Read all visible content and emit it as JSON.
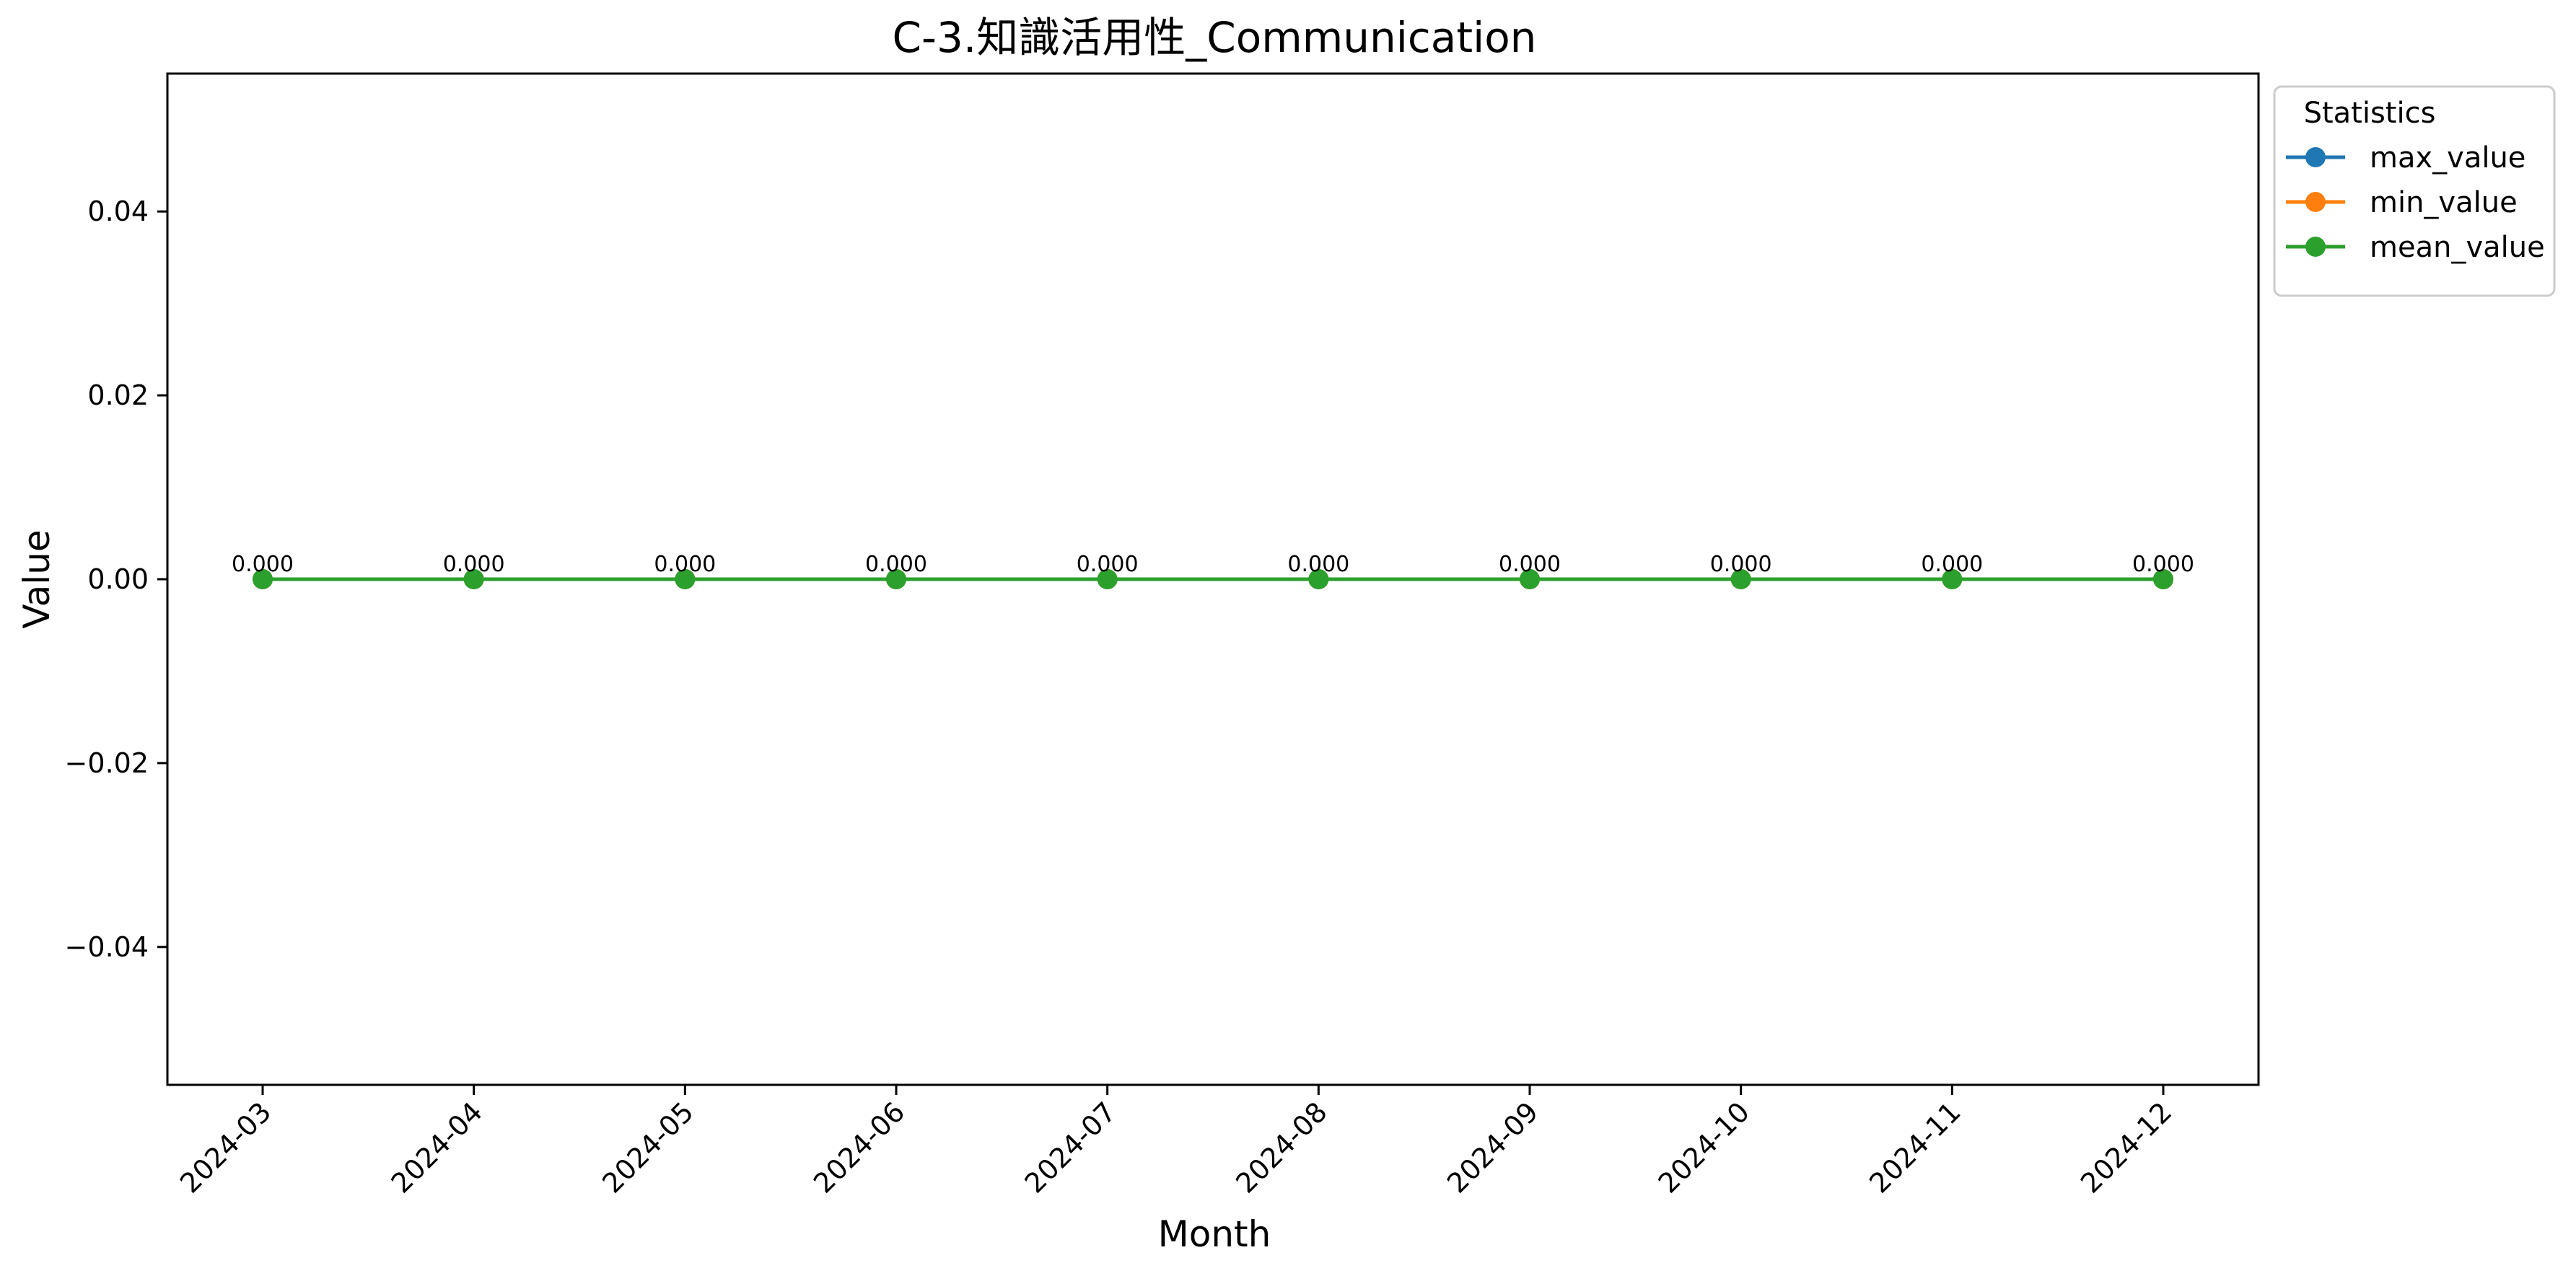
{
  "chart_data": {
    "type": "line",
    "title": "C-3.知識活用性_Communication",
    "xlabel": "Month",
    "ylabel": "Value",
    "categories": [
      "2024-03",
      "2024-04",
      "2024-05",
      "2024-06",
      "2024-07",
      "2024-08",
      "2024-09",
      "2024-10",
      "2024-11",
      "2024-12"
    ],
    "series": [
      {
        "name": "max_value",
        "color": "#1f77b4",
        "values": [
          0,
          0,
          0,
          0,
          0,
          0,
          0,
          0,
          0,
          0
        ]
      },
      {
        "name": "min_value",
        "color": "#ff7f0e",
        "values": [
          0,
          0,
          0,
          0,
          0,
          0,
          0,
          0,
          0,
          0
        ]
      },
      {
        "name": "mean_value",
        "color": "#2ca02c",
        "values": [
          0,
          0,
          0,
          0,
          0,
          0,
          0,
          0,
          0,
          0
        ]
      }
    ],
    "data_labels": [
      "0.000",
      "0.000",
      "0.000",
      "0.000",
      "0.000",
      "0.000",
      "0.000",
      "0.000",
      "0.000",
      "0.000"
    ],
    "ylim": [
      -0.055,
      0.055
    ],
    "yticks": [
      -0.04,
      -0.02,
      0.0,
      0.02,
      0.04
    ],
    "ytick_labels": [
      "−0.04",
      "−0.02",
      "0.00",
      "0.02",
      "0.04"
    ],
    "legend": {
      "title": "Statistics",
      "placement": "outside-top-right"
    },
    "grid": false
  }
}
